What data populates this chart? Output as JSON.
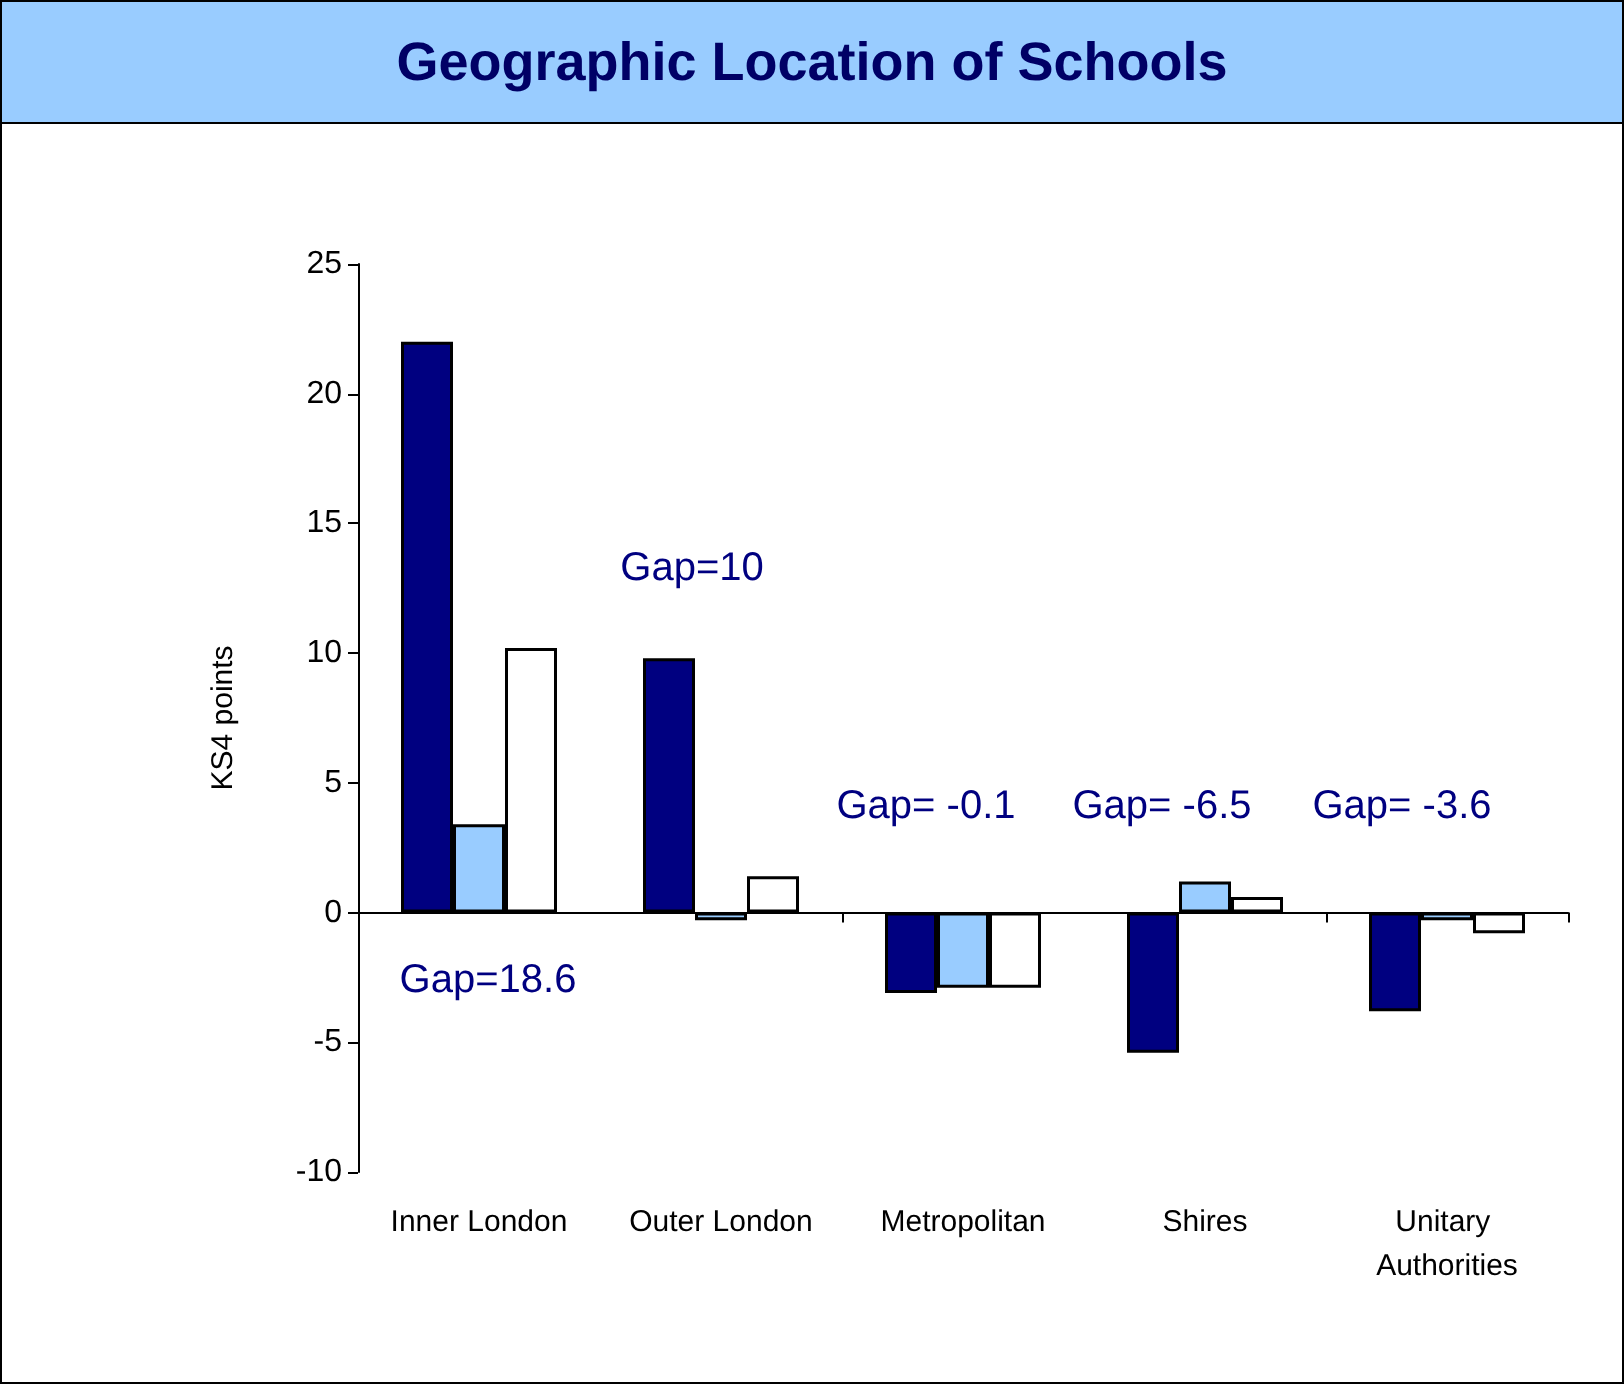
{
  "chart_data": {
    "type": "bar",
    "title": "Geographic Location of Schools",
    "ylabel": "KS4 points",
    "categories": [
      "Inner London",
      "Outer London",
      "Metropolitan",
      "Shires",
      "Unitary Authorities"
    ],
    "series": [
      {
        "color": "#000080",
        "values": [
          22.0,
          9.8,
          -3.1,
          -5.4,
          -3.8
        ]
      },
      {
        "color": "#99ccff",
        "values": [
          3.4,
          -0.3,
          -2.9,
          1.2,
          -0.3
        ]
      },
      {
        "color": "#ffffff",
        "values": [
          10.2,
          1.4,
          -2.9,
          0.6,
          -0.8
        ]
      }
    ],
    "ylim": [
      -10,
      25
    ],
    "yticks": [
      -10,
      -5,
      0,
      5,
      10,
      15,
      20,
      25
    ],
    "annotations": [
      "Gap=18.6",
      "Gap=10",
      "Gap= -0.1",
      "Gap= -6.5",
      "Gap= -3.6"
    ]
  }
}
